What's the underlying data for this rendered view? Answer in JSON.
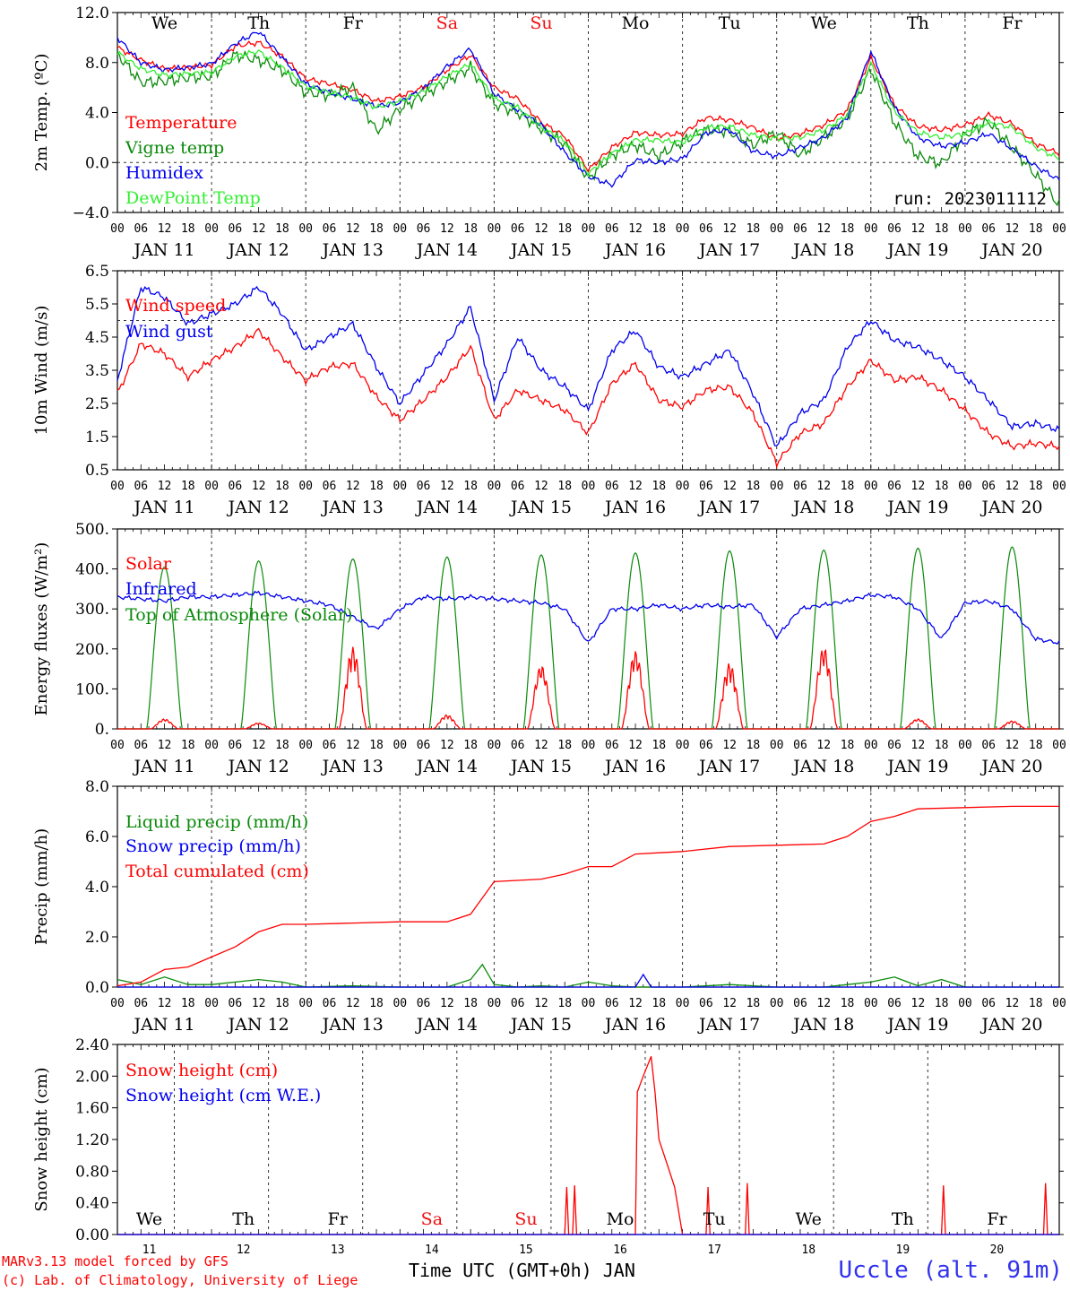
{
  "run_label": "run: 2023011112",
  "colors": {
    "red": "#ff0000",
    "green": "#0a8a0a",
    "blue": "#0000ee",
    "lightgreen": "#33ee33",
    "weekend": "#ee1111"
  },
  "days": [
    "We",
    "Th",
    "Fr",
    "Sa",
    "Su",
    "Mo",
    "Tu",
    "We",
    "Th",
    "Fr"
  ],
  "weekend_days": [
    3,
    4
  ],
  "date_labels": [
    "JAN 11",
    "JAN 12",
    "JAN 13",
    "JAN 14",
    "JAN 15",
    "JAN 16",
    "JAN 17",
    "JAN 18",
    "JAN 19",
    "JAN 20"
  ],
  "hour_labels": [
    "00",
    "06",
    "12",
    "18"
  ],
  "final_hour_label": "00",
  "chart_data": [
    {
      "type": "line",
      "ylabel": "2m Temp. (ºC)",
      "yticks": [
        "12.0",
        "8.0",
        "4.0",
        "0.0",
        "−4.0"
      ],
      "ylim": [
        -4,
        12
      ],
      "ref_lines": [
        0
      ],
      "x_unit": "hours since JAN 11 00 UTC",
      "series": [
        {
          "name": "Temperature",
          "color": "red",
          "x": [
            0,
            6,
            12,
            18,
            24,
            30,
            36,
            42,
            48,
            54,
            60,
            66,
            72,
            78,
            84,
            90,
            96,
            102,
            108,
            114,
            120,
            126,
            132,
            138,
            144,
            150,
            156,
            162,
            168,
            174,
            180,
            186,
            192,
            198,
            204,
            210,
            216,
            222,
            228,
            234,
            240
          ],
          "y": [
            9.2,
            8.2,
            7.5,
            7.6,
            7.8,
            9.3,
            9.6,
            8.5,
            6.7,
            6.3,
            5.8,
            4.9,
            5.3,
            6.0,
            7.4,
            8.6,
            6.0,
            5.1,
            3.2,
            2.1,
            -0.6,
            1.2,
            2.4,
            2.2,
            2.3,
            3.6,
            3.4,
            2.8,
            1.9,
            2.3,
            3.0,
            4.2,
            8.4,
            4.6,
            2.9,
            2.6,
            3.0,
            3.8,
            3.1,
            1.5,
            0.7
          ]
        },
        {
          "name": "Vigne temp",
          "color": "green",
          "x": [
            0,
            6,
            12,
            18,
            24,
            30,
            36,
            42,
            48,
            54,
            60,
            66,
            72,
            78,
            84,
            90,
            96,
            102,
            108,
            114,
            120,
            126,
            132,
            138,
            144,
            150,
            156,
            162,
            168,
            174,
            180,
            186,
            192,
            198,
            204,
            210,
            216,
            222,
            228,
            234,
            240
          ],
          "y": [
            8.7,
            6.4,
            6.5,
            6.8,
            6.9,
            8.6,
            8.2,
            7.4,
            5.6,
            5.4,
            6.0,
            2.5,
            4.3,
            5.4,
            6.5,
            7.6,
            4.7,
            4.0,
            2.7,
            1.5,
            -1.3,
            0.6,
            1.4,
            0.5,
            1.7,
            2.6,
            2.5,
            1.4,
            2.4,
            0.6,
            2.0,
            3.5,
            7.5,
            3.2,
            0.5,
            -0.1,
            2.2,
            3.3,
            1.2,
            -1.0,
            -3.4
          ]
        },
        {
          "name": "Humidex",
          "color": "blue",
          "x": [
            0,
            6,
            12,
            18,
            24,
            30,
            36,
            42,
            48,
            54,
            60,
            66,
            72,
            78,
            84,
            90,
            96,
            102,
            108,
            114,
            120,
            126,
            132,
            138,
            144,
            150,
            156,
            162,
            168,
            174,
            180,
            186,
            192,
            198,
            204,
            210,
            216,
            222,
            228,
            234,
            240
          ],
          "y": [
            10.0,
            8.0,
            7.4,
            7.6,
            7.9,
            9.5,
            10.5,
            8.4,
            6.3,
            5.6,
            5.1,
            4.5,
            4.8,
            5.9,
            7.7,
            9.1,
            5.5,
            4.2,
            3.0,
            0.8,
            -1.1,
            -1.8,
            0.2,
            0.0,
            0.3,
            2.4,
            2.6,
            0.9,
            0.5,
            1.2,
            2.0,
            3.6,
            8.9,
            4.4,
            2.0,
            1.3,
            1.6,
            2.3,
            1.1,
            -0.3,
            -1.4
          ]
        },
        {
          "name": "DewPoint Temp",
          "color": "lightgreen",
          "x": [
            0,
            6,
            12,
            18,
            24,
            30,
            36,
            42,
            48,
            54,
            60,
            66,
            72,
            78,
            84,
            90,
            96,
            102,
            108,
            114,
            120,
            126,
            132,
            138,
            144,
            150,
            156,
            162,
            168,
            174,
            180,
            186,
            192,
            198,
            204,
            210,
            216,
            222,
            228,
            234,
            240
          ],
          "y": [
            8.8,
            7.5,
            7.0,
            7.1,
            7.2,
            8.5,
            8.9,
            7.6,
            6.1,
            5.6,
            5.2,
            4.4,
            4.9,
            5.7,
            6.9,
            7.9,
            5.1,
            4.4,
            2.8,
            1.7,
            -0.9,
            0.7,
            1.8,
            1.8,
            1.6,
            2.8,
            2.9,
            2.2,
            1.9,
            2.0,
            2.6,
            3.8,
            7.9,
            4.1,
            2.4,
            2.0,
            2.3,
            3.2,
            2.8,
            1.2,
            0.3
          ]
        }
      ]
    },
    {
      "type": "line",
      "ylabel": "10m Wind (m/s)",
      "yticks": [
        "6.5",
        "5.5",
        "4.5",
        "3.5",
        "2.5",
        "1.5",
        "0.5"
      ],
      "ylim": [
        0.5,
        6.5
      ],
      "ref_lines": [
        5
      ],
      "series": [
        {
          "name": "Wind speed",
          "color": "red",
          "x": [
            0,
            6,
            12,
            18,
            24,
            30,
            36,
            42,
            48,
            54,
            60,
            66,
            72,
            78,
            84,
            90,
            96,
            102,
            108,
            114,
            120,
            126,
            132,
            138,
            144,
            150,
            156,
            162,
            168,
            174,
            180,
            186,
            192,
            198,
            204,
            210,
            216,
            222,
            228,
            234,
            240
          ],
          "y": [
            2.8,
            4.3,
            4.0,
            3.3,
            3.8,
            4.2,
            4.7,
            3.9,
            3.2,
            3.6,
            3.7,
            2.7,
            2.0,
            2.6,
            3.3,
            4.2,
            2.0,
            2.9,
            2.6,
            2.3,
            1.6,
            3.1,
            3.7,
            2.6,
            2.4,
            2.9,
            3.0,
            2.2,
            0.7,
            1.6,
            1.9,
            3.0,
            3.8,
            3.2,
            3.3,
            2.9,
            2.3,
            1.6,
            1.2,
            1.3,
            1.2
          ]
        },
        {
          "name": "Wind gust",
          "color": "blue",
          "x": [
            0,
            6,
            12,
            18,
            24,
            30,
            36,
            42,
            48,
            54,
            60,
            66,
            72,
            78,
            84,
            90,
            96,
            102,
            108,
            114,
            120,
            126,
            132,
            138,
            144,
            150,
            156,
            162,
            168,
            174,
            180,
            186,
            192,
            198,
            204,
            210,
            216,
            222,
            228,
            234,
            240
          ],
          "y": [
            3.2,
            6.0,
            5.7,
            4.9,
            5.2,
            5.5,
            6.0,
            5.2,
            4.1,
            4.5,
            4.9,
            3.6,
            2.5,
            3.4,
            4.3,
            5.4,
            2.6,
            4.5,
            3.5,
            3.0,
            2.3,
            4.1,
            4.7,
            3.6,
            3.3,
            3.7,
            4.1,
            2.8,
            1.2,
            2.2,
            2.6,
            4.2,
            5.0,
            4.4,
            4.2,
            3.8,
            3.3,
            2.6,
            1.8,
            1.9,
            1.7
          ]
        }
      ]
    },
    {
      "type": "line",
      "ylabel": "Energy fluxes (W/m²)",
      "yticks": [
        "500.",
        "400.",
        "300.",
        "200.",
        "100.",
        "0."
      ],
      "ylim": [
        0,
        500
      ],
      "ref_lines": [],
      "toa_peaks": [
        405,
        420,
        425,
        430,
        435,
        440,
        445,
        447,
        452,
        455
      ],
      "solar_peaks": [
        25,
        15,
        205,
        35,
        160,
        195,
        165,
        205,
        25,
        20
      ],
      "series": [
        {
          "name": "Solar",
          "color": "red"
        },
        {
          "name": "Infrared",
          "color": "blue",
          "x": [
            0,
            6,
            12,
            18,
            24,
            30,
            36,
            42,
            48,
            54,
            60,
            66,
            72,
            78,
            84,
            90,
            96,
            102,
            108,
            114,
            120,
            126,
            132,
            138,
            144,
            150,
            156,
            162,
            168,
            174,
            180,
            186,
            192,
            198,
            204,
            210,
            216,
            222,
            228,
            234,
            240
          ],
          "y": [
            330,
            325,
            320,
            330,
            330,
            335,
            340,
            330,
            320,
            310,
            280,
            250,
            300,
            330,
            325,
            330,
            325,
            320,
            315,
            300,
            215,
            300,
            300,
            310,
            300,
            310,
            305,
            310,
            230,
            300,
            310,
            320,
            335,
            330,
            300,
            225,
            315,
            320,
            300,
            225,
            215
          ]
        },
        {
          "name": "Top of Atmosphere (Solar)",
          "color": "green"
        }
      ]
    },
    {
      "type": "line",
      "ylabel": "Precip (mm/h)",
      "yticks": [
        "8.0",
        "6.0",
        "4.0",
        "2.0",
        "0.0"
      ],
      "ylim": [
        0,
        8
      ],
      "ref_lines": [],
      "series": [
        {
          "name": "Liquid precip (mm/h)",
          "color": "green",
          "x": [
            0,
            6,
            12,
            18,
            24,
            30,
            36,
            42,
            48,
            60,
            72,
            84,
            90,
            93,
            96,
            102,
            108,
            114,
            120,
            126,
            132,
            138,
            144,
            156,
            168,
            180,
            186,
            192,
            198,
            204,
            210,
            216,
            228,
            240
          ],
          "y": [
            0.3,
            0.1,
            0.4,
            0.1,
            0.1,
            0.2,
            0.3,
            0.2,
            0.0,
            0.05,
            0.0,
            0.0,
            0.3,
            0.9,
            0.1,
            0.0,
            0.05,
            0.0,
            0.2,
            0.05,
            0.0,
            0.0,
            0.0,
            0.1,
            0.0,
            0.0,
            0.1,
            0.2,
            0.4,
            0.05,
            0.3,
            0.0,
            0.0,
            0.0
          ]
        },
        {
          "name": "Snow precip (mm/h)",
          "color": "blue",
          "x": [
            0,
            120,
            132,
            134,
            136,
            140,
            240
          ],
          "y": [
            0,
            0,
            0,
            0.5,
            0,
            0,
            0
          ]
        },
        {
          "name": "Total cumulated (cm)",
          "color": "red",
          "x": [
            0,
            6,
            12,
            18,
            24,
            30,
            36,
            42,
            48,
            60,
            72,
            84,
            90,
            96,
            102,
            108,
            114,
            120,
            126,
            132,
            138,
            144,
            156,
            168,
            180,
            186,
            192,
            198,
            204,
            216,
            228,
            240
          ],
          "y": [
            0.05,
            0.2,
            0.7,
            0.8,
            1.2,
            1.6,
            2.2,
            2.5,
            2.5,
            2.55,
            2.6,
            2.6,
            2.9,
            4.2,
            4.25,
            4.3,
            4.5,
            4.8,
            4.8,
            5.3,
            5.35,
            5.4,
            5.6,
            5.65,
            5.7,
            6.0,
            6.6,
            6.8,
            7.1,
            7.15,
            7.2,
            7.2
          ]
        }
      ]
    },
    {
      "type": "line",
      "ylabel": "Snow height (cm)",
      "yticks": [
        "2.40",
        "2.00",
        "1.60",
        "1.20",
        "0.80",
        "0.40",
        "0.00"
      ],
      "ylim": [
        0,
        2.4
      ],
      "ref_lines": [],
      "series": [
        {
          "name": "Snow height (cm)",
          "color": "red",
          "x": [
            0,
            114,
            114.5,
            115,
            116,
            116.5,
            117,
            132,
            132.5,
            134,
            136,
            137,
            138,
            140,
            142,
            144,
            144.5,
            150,
            150.5,
            151,
            160,
            160.5,
            161,
            210,
            210.5,
            211,
            236,
            236.5,
            237,
            240
          ],
          "y": [
            0,
            0,
            0.6,
            0,
            0,
            0.62,
            0,
            0,
            1.8,
            2.0,
            2.25,
            1.8,
            1.2,
            0.9,
            0.6,
            0,
            0,
            0,
            0.6,
            0,
            0,
            0.65,
            0,
            0,
            0.62,
            0,
            0,
            0.65,
            0,
            0
          ]
        },
        {
          "name": "Snow height (cm W.E.)",
          "color": "blue",
          "x": [
            0,
            240
          ],
          "y": [
            0,
            0
          ]
        }
      ]
    }
  ],
  "bottom_days": [
    "We",
    "Th",
    "Fr",
    "Sa",
    "Su",
    "Mo",
    "Tu",
    "We",
    "Th",
    "Fr"
  ],
  "bottom_dates": [
    "11",
    "12",
    "13",
    "14",
    "15",
    "16",
    "17",
    "18",
    "19",
    "20"
  ],
  "footer": {
    "credit_line1": "MARv3.13 model forced by GFS",
    "credit_line2": "(c) Lab. of Climatology, University of Liege",
    "axis_title": "Time UTC (GMT+0h) JAN",
    "station": "Uccle (alt. 91m)"
  }
}
